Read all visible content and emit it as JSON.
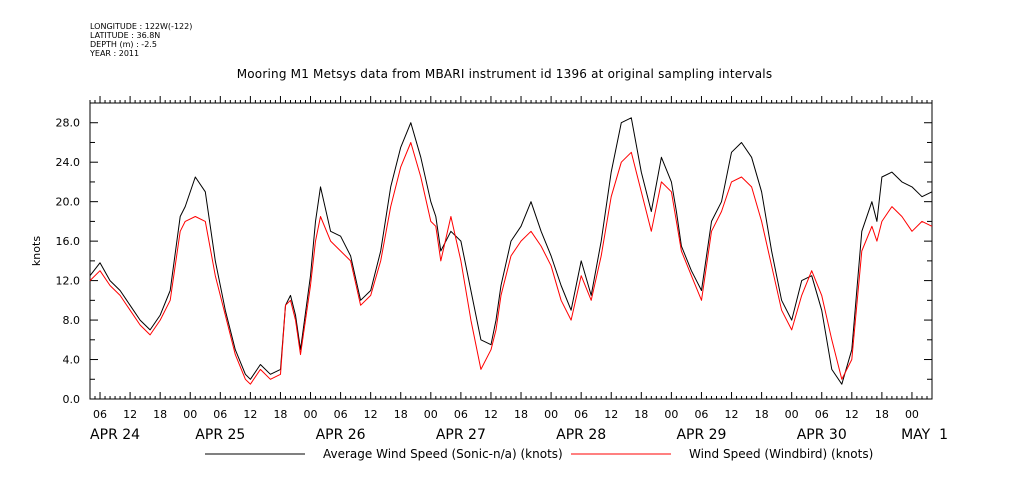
{
  "meta": {
    "longitude": "LONGITUDE : 122W(-122)",
    "latitude": "LATITUDE : 36.8N",
    "depth": "DEPTH (m) : -2.5",
    "year": "YEAR : 2011"
  },
  "chart_data": {
    "type": "line",
    "title": "Mooring M1 Metsys data from MBARI instrument id 1396 at original sampling intervals",
    "ylabel": "knots",
    "ylim": [
      0,
      30
    ],
    "y_ticks": [
      "0.0",
      "4.0",
      "8.0",
      "12.0",
      "16.0",
      "20.0",
      "24.0",
      "28.0"
    ],
    "x_unit": "hours since APR 24 00:00, 2011",
    "xlim": [
      4,
      172
    ],
    "hour_ticks": [
      {
        "x": 6,
        "label": "06"
      },
      {
        "x": 12,
        "label": "12"
      },
      {
        "x": 18,
        "label": "18"
      },
      {
        "x": 24,
        "label": "00"
      },
      {
        "x": 30,
        "label": "06"
      },
      {
        "x": 36,
        "label": "12"
      },
      {
        "x": 42,
        "label": "18"
      },
      {
        "x": 48,
        "label": "00"
      },
      {
        "x": 54,
        "label": "06"
      },
      {
        "x": 60,
        "label": "12"
      },
      {
        "x": 66,
        "label": "18"
      },
      {
        "x": 72,
        "label": "00"
      },
      {
        "x": 78,
        "label": "06"
      },
      {
        "x": 84,
        "label": "12"
      },
      {
        "x": 90,
        "label": "18"
      },
      {
        "x": 96,
        "label": "00"
      },
      {
        "x": 102,
        "label": "06"
      },
      {
        "x": 108,
        "label": "12"
      },
      {
        "x": 114,
        "label": "18"
      },
      {
        "x": 120,
        "label": "00"
      },
      {
        "x": 126,
        "label": "06"
      },
      {
        "x": 132,
        "label": "12"
      },
      {
        "x": 138,
        "label": "18"
      },
      {
        "x": 144,
        "label": "00"
      },
      {
        "x": 150,
        "label": "06"
      },
      {
        "x": 156,
        "label": "12"
      },
      {
        "x": 162,
        "label": "18"
      },
      {
        "x": 168,
        "label": "00"
      }
    ],
    "date_labels": [
      {
        "x": 9,
        "label": "APR 24"
      },
      {
        "x": 30,
        "label": "APR 25"
      },
      {
        "x": 54,
        "label": "APR 26"
      },
      {
        "x": 78,
        "label": "APR 27"
      },
      {
        "x": 102,
        "label": "APR 28"
      },
      {
        "x": 126,
        "label": "APR 29"
      },
      {
        "x": 150,
        "label": "APR 30"
      },
      {
        "x": 172,
        "label": "MAY  1"
      }
    ],
    "series": [
      {
        "name": "Average Wind Speed (Sonic-n/a) (knots)",
        "color": "#000000",
        "x": [
          4,
          6,
          8,
          10,
          12,
          14,
          16,
          18,
          20,
          22,
          23,
          25,
          27,
          29,
          31,
          33,
          35,
          36,
          38,
          40,
          42,
          43,
          44,
          45,
          46,
          48,
          49,
          50,
          52,
          54,
          56,
          58,
          60,
          62,
          64,
          66,
          68,
          70,
          72,
          73,
          74,
          76,
          78,
          80,
          82,
          84,
          85,
          86,
          88,
          90,
          92,
          94,
          96,
          98,
          100,
          102,
          104,
          106,
          108,
          110,
          112,
          114,
          116,
          118,
          120,
          121,
          122,
          124,
          126,
          128,
          130,
          132,
          134,
          136,
          138,
          140,
          142,
          144,
          146,
          148,
          150,
          152,
          154,
          156,
          158,
          160,
          161,
          162,
          164,
          166,
          168,
          170,
          172
        ],
        "values": [
          12.5,
          13.8,
          12.0,
          11.0,
          9.5,
          8.0,
          7.0,
          8.5,
          11.0,
          18.5,
          19.5,
          22.5,
          21.0,
          14.0,
          9.0,
          5.0,
          2.5,
          2.0,
          3.5,
          2.5,
          3.0,
          9.5,
          10.5,
          8.5,
          5.0,
          12.5,
          18.0,
          21.5,
          17.0,
          16.5,
          14.5,
          10.0,
          11.0,
          15.0,
          21.5,
          25.5,
          28.0,
          24.5,
          20.0,
          18.5,
          15.0,
          17.0,
          16.0,
          11.0,
          6.0,
          5.5,
          8.0,
          11.5,
          16.0,
          17.5,
          20.0,
          17.0,
          14.5,
          11.5,
          9.0,
          14.0,
          10.5,
          16.0,
          23.0,
          28.0,
          28.5,
          23.0,
          19.0,
          24.5,
          22.0,
          19.0,
          15.5,
          13.0,
          11.0,
          18.0,
          20.0,
          25.0,
          26.0,
          24.5,
          21.0,
          15.0,
          10.0,
          8.0,
          12.0,
          12.5,
          9.0,
          3.0,
          1.5,
          5.0,
          17.0,
          20.0,
          18.0,
          22.5,
          23.0,
          22.0,
          21.5,
          20.5,
          21.0
        ]
      },
      {
        "name": "Wind Speed (Windbird) (knots)",
        "color": "#ff0000",
        "x": [
          4,
          6,
          8,
          10,
          12,
          14,
          16,
          18,
          20,
          22,
          23,
          25,
          27,
          29,
          31,
          33,
          35,
          36,
          38,
          40,
          42,
          43,
          44,
          45,
          46,
          48,
          49,
          50,
          52,
          54,
          56,
          58,
          60,
          62,
          64,
          66,
          68,
          70,
          72,
          73,
          74,
          76,
          78,
          80,
          82,
          84,
          85,
          86,
          88,
          90,
          92,
          94,
          96,
          98,
          100,
          102,
          104,
          106,
          108,
          110,
          112,
          114,
          116,
          118,
          120,
          121,
          122,
          124,
          126,
          128,
          130,
          132,
          134,
          136,
          138,
          140,
          142,
          144,
          146,
          148,
          150,
          152,
          154,
          156,
          158,
          160,
          161,
          162,
          164,
          166,
          168,
          170,
          172
        ],
        "values": [
          12.0,
          13.0,
          11.5,
          10.5,
          9.0,
          7.5,
          6.5,
          8.0,
          10.0,
          17.0,
          18.0,
          18.5,
          18.0,
          12.5,
          8.5,
          4.5,
          2.0,
          1.5,
          3.0,
          2.0,
          2.5,
          9.5,
          10.0,
          8.0,
          4.5,
          11.5,
          16.0,
          18.5,
          16.0,
          15.0,
          14.0,
          9.5,
          10.5,
          14.0,
          19.5,
          23.5,
          26.0,
          22.5,
          18.0,
          17.5,
          14.0,
          18.5,
          14.0,
          8.0,
          3.0,
          5.0,
          7.0,
          10.5,
          14.5,
          16.0,
          17.0,
          15.5,
          13.5,
          10.0,
          8.0,
          12.5,
          10.0,
          14.5,
          20.5,
          24.0,
          25.0,
          21.0,
          17.0,
          22.0,
          21.0,
          18.0,
          15.0,
          12.5,
          10.0,
          17.0,
          19.0,
          22.0,
          22.5,
          21.5,
          18.0,
          13.5,
          9.0,
          7.0,
          10.5,
          13.0,
          10.5,
          6.0,
          2.0,
          4.0,
          15.0,
          17.5,
          16.0,
          18.0,
          19.5,
          18.5,
          17.0,
          18.0,
          17.5
        ]
      }
    ],
    "legend": [
      {
        "label": "Average Wind Speed (Sonic-n/a) (knots)",
        "color": "#000000"
      },
      {
        "label": "Wind Speed (Windbird) (knots)",
        "color": "#ff0000"
      }
    ],
    "legend_position": "bottom-center",
    "grid": false
  }
}
